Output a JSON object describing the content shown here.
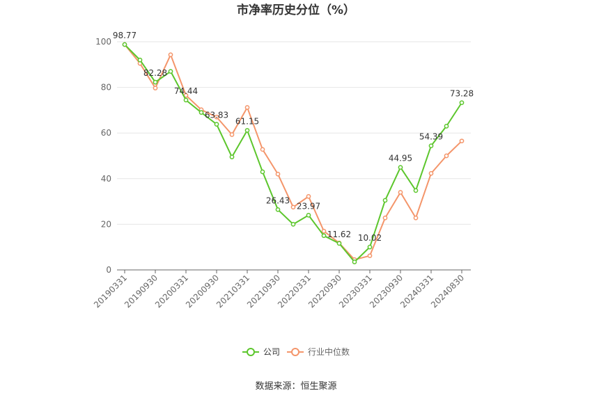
{
  "chart_data": {
    "type": "line",
    "title": "市净率历史分位（%）",
    "xlabel": "",
    "ylabel": "",
    "ylim": [
      0,
      100
    ],
    "yticks": [
      "0",
      "20",
      "40",
      "60",
      "80",
      "100"
    ],
    "x_tick_labels": [
      "20190331",
      "20190930",
      "20200331",
      "20200930",
      "20210331",
      "20210930",
      "20220331",
      "20220930",
      "20230331",
      "20230930",
      "20240331",
      "20240830"
    ],
    "x": [
      "20190331",
      "20190630",
      "20190930",
      "20191231",
      "20200331",
      "20200630",
      "20200930",
      "20201231",
      "20210331",
      "20210630",
      "20210930",
      "20211231",
      "20220331",
      "20220630",
      "20220930",
      "20221231",
      "20230331",
      "20230630",
      "20230930",
      "20231231",
      "20240331",
      "20240630",
      "20240830"
    ],
    "series": [
      {
        "name": "公司",
        "color": "#5cc62c",
        "values": [
          98.77,
          92.0,
          82.28,
          87.0,
          74.44,
          69.0,
          63.83,
          49.5,
          61.15,
          43.0,
          26.43,
          20.0,
          23.97,
          15.0,
          11.62,
          3.5,
          10.02,
          30.5,
          44.95,
          34.8,
          54.39,
          63.0,
          73.28
        ]
      },
      {
        "name": "行业中位数",
        "color": "#f4956a",
        "values": [
          98.77,
          90.5,
          79.7,
          94.3,
          76.5,
          70.2,
          67.0,
          59.3,
          71.2,
          52.8,
          42.0,
          27.5,
          32.2,
          17.0,
          11.8,
          4.5,
          6.2,
          22.8,
          34.0,
          22.8,
          42.3,
          50.0,
          56.5
        ]
      }
    ],
    "data_labels": [
      {
        "series": 0,
        "index": 0,
        "text": "98.77"
      },
      {
        "series": 0,
        "index": 2,
        "text": "82.28"
      },
      {
        "series": 0,
        "index": 4,
        "text": "74.44"
      },
      {
        "series": 0,
        "index": 6,
        "text": "63.83"
      },
      {
        "series": 0,
        "index": 8,
        "text": "61.15"
      },
      {
        "series": 0,
        "index": 10,
        "text": "26.43"
      },
      {
        "series": 0,
        "index": 12,
        "text": "23.97"
      },
      {
        "series": 0,
        "index": 14,
        "text": "11.62"
      },
      {
        "series": 0,
        "index": 16,
        "text": "10.02"
      },
      {
        "series": 0,
        "index": 18,
        "text": "44.95"
      },
      {
        "series": 0,
        "index": 20,
        "text": "54.39"
      },
      {
        "series": 0,
        "index": 22,
        "text": "73.28"
      }
    ],
    "grid": true,
    "legend_position": "bottom"
  },
  "legend": [
    {
      "label": "公司",
      "color": "#5cc62c"
    },
    {
      "label": "行业中位数",
      "color": "#f4956a"
    }
  ],
  "source_text": "数据来源：恒生聚源"
}
